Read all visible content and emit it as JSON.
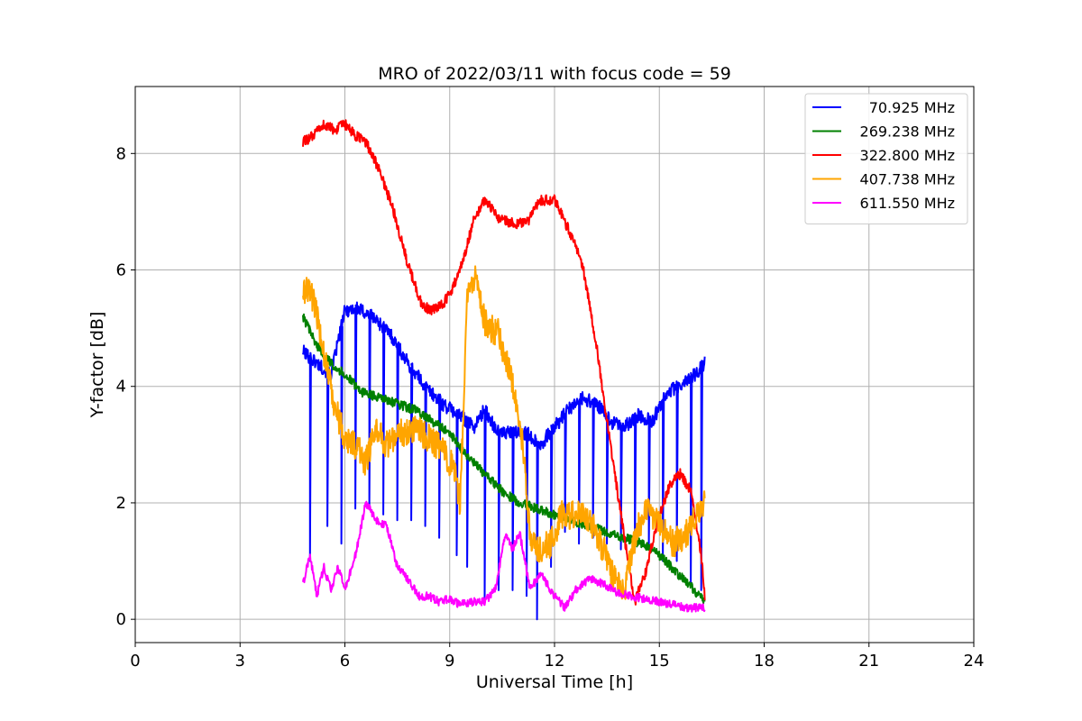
{
  "chart_data": {
    "type": "line",
    "title": "MRO of 2022/03/11 with focus code = 59",
    "xlabel": "Universal Time [h]",
    "ylabel": "Y-factor [dB]",
    "xlim": [
      0,
      24
    ],
    "ylim": [
      -0.4,
      9.15
    ],
    "xticks": [
      0,
      3,
      6,
      9,
      12,
      15,
      18,
      21,
      24
    ],
    "yticks": [
      0,
      2,
      4,
      6,
      8
    ],
    "xtick_labels": [
      "0",
      "3",
      "6",
      "9",
      "12",
      "15",
      "18",
      "21",
      "24"
    ],
    "ytick_labels": [
      "0",
      "2",
      "4",
      "6",
      "8"
    ],
    "grid": true,
    "legend_position": "top-right",
    "series": [
      {
        "name": "70.925 MHz",
        "legend_label": " 70.925 MHz",
        "color": "#0000ff",
        "noise": 0.12,
        "x": [
          4.8,
          5.2,
          5.6,
          6.0,
          6.3,
          6.8,
          7.3,
          7.8,
          8.3,
          8.8,
          9.3,
          9.7,
          10.0,
          10.4,
          10.8,
          11.2,
          11.6,
          12.0,
          12.4,
          12.8,
          13.2,
          13.6,
          14.0,
          14.4,
          14.8,
          15.2,
          15.6,
          16.0,
          16.3
        ],
        "y": [
          4.6,
          4.4,
          4.2,
          5.3,
          5.35,
          5.2,
          4.9,
          4.4,
          4.0,
          3.7,
          3.5,
          3.3,
          3.6,
          3.2,
          3.2,
          3.2,
          3.0,
          3.3,
          3.6,
          3.8,
          3.7,
          3.4,
          3.3,
          3.5,
          3.4,
          3.9,
          4.0,
          4.2,
          4.4
        ],
        "dropouts": [
          {
            "x": 5.0,
            "y": 1.0
          },
          {
            "x": 5.5,
            "y": 1.6
          },
          {
            "x": 5.9,
            "y": 1.3
          },
          {
            "x": 6.3,
            "y": 1.9
          },
          {
            "x": 6.7,
            "y": 1.9
          },
          {
            "x": 7.1,
            "y": 1.8
          },
          {
            "x": 7.5,
            "y": 1.7
          },
          {
            "x": 7.9,
            "y": 1.7
          },
          {
            "x": 8.3,
            "y": 1.6
          },
          {
            "x": 8.7,
            "y": 1.4
          },
          {
            "x": 9.2,
            "y": 1.1
          },
          {
            "x": 9.5,
            "y": 0.9
          },
          {
            "x": 10.0,
            "y": 0.3
          },
          {
            "x": 10.4,
            "y": 0.5
          },
          {
            "x": 10.8,
            "y": 0.5
          },
          {
            "x": 11.2,
            "y": 0.4
          },
          {
            "x": 11.5,
            "y": 0.0
          },
          {
            "x": 11.9,
            "y": 0.9
          },
          {
            "x": 12.3,
            "y": 1.5
          },
          {
            "x": 12.7,
            "y": 1.3
          },
          {
            "x": 13.1,
            "y": 1.4
          },
          {
            "x": 13.5,
            "y": 1.3
          },
          {
            "x": 13.9,
            "y": 1.2
          },
          {
            "x": 14.3,
            "y": 1.2
          },
          {
            "x": 14.7,
            "y": 1.2
          },
          {
            "x": 15.1,
            "y": 1.0
          },
          {
            "x": 15.5,
            "y": 1.0
          },
          {
            "x": 15.9,
            "y": 0.6
          },
          {
            "x": 16.2,
            "y": 0.5
          }
        ]
      },
      {
        "name": "269.238 MHz",
        "legend_label": "269.238 MHz",
        "color": "#008000",
        "noise": 0.08,
        "x": [
          4.8,
          5.2,
          5.6,
          6.0,
          6.5,
          7.0,
          7.5,
          8.0,
          8.5,
          9.0,
          9.5,
          10.0,
          10.5,
          11.0,
          11.5,
          12.0,
          12.5,
          13.0,
          13.5,
          14.0,
          14.5,
          15.0,
          15.5,
          16.0,
          16.3
        ],
        "y": [
          5.2,
          4.7,
          4.4,
          4.2,
          3.9,
          3.8,
          3.7,
          3.6,
          3.4,
          3.2,
          2.8,
          2.5,
          2.2,
          2.0,
          1.9,
          1.8,
          1.7,
          1.6,
          1.5,
          1.4,
          1.3,
          1.1,
          0.8,
          0.5,
          0.3
        ]
      },
      {
        "name": "322.800 MHz",
        "legend_label": "322.800 MHz",
        "color": "#ff0000",
        "noise": 0.09,
        "x": [
          4.8,
          5.1,
          5.4,
          5.7,
          6.0,
          6.3,
          6.6,
          7.0,
          7.4,
          7.8,
          8.2,
          8.5,
          8.8,
          9.1,
          9.4,
          9.7,
          10.0,
          10.4,
          10.8,
          11.2,
          11.6,
          12.0,
          12.4,
          12.8,
          13.2,
          13.5,
          13.8,
          14.1,
          14.3,
          14.6,
          15.0,
          15.3,
          15.6,
          15.9,
          16.2,
          16.3
        ],
        "y": [
          8.2,
          8.3,
          8.5,
          8.4,
          8.5,
          8.3,
          8.2,
          7.7,
          7.0,
          6.1,
          5.4,
          5.3,
          5.4,
          5.7,
          6.2,
          6.9,
          7.2,
          6.9,
          6.8,
          6.8,
          7.2,
          7.2,
          6.7,
          6.1,
          4.7,
          3.4,
          2.2,
          1.0,
          0.3,
          0.8,
          1.8,
          2.3,
          2.5,
          2.2,
          1.1,
          0.4
        ]
      },
      {
        "name": "407.738 MHz",
        "legend_label": "407.738 MHz",
        "color": "#ffa500",
        "noise": 0.25,
        "x": [
          4.8,
          5.0,
          5.2,
          5.4,
          5.7,
          6.0,
          6.3,
          6.6,
          6.9,
          7.2,
          7.6,
          8.0,
          8.4,
          8.8,
          9.1,
          9.3,
          9.5,
          9.7,
          10.0,
          10.4,
          10.8,
          11.1,
          11.3,
          11.6,
          11.9,
          12.2,
          12.6,
          13.0,
          13.4,
          13.7,
          14.0,
          14.3,
          14.6,
          15.0,
          15.4,
          15.8,
          16.1,
          16.3
        ],
        "y": [
          5.6,
          5.7,
          5.2,
          4.6,
          3.7,
          3.1,
          3.0,
          2.7,
          3.3,
          3.0,
          3.2,
          3.3,
          3.1,
          2.9,
          2.6,
          2.0,
          5.5,
          5.9,
          5.1,
          4.9,
          4.1,
          3.0,
          1.4,
          1.2,
          1.3,
          1.8,
          1.8,
          1.7,
          1.2,
          0.7,
          0.5,
          1.4,
          1.9,
          1.6,
          1.3,
          1.5,
          1.8,
          2.0
        ]
      },
      {
        "name": "611.550 MHz",
        "legend_label": "611.550 MHz",
        "color": "#ff00ff",
        "noise": 0.07,
        "x": [
          4.8,
          5.0,
          5.2,
          5.4,
          5.6,
          5.8,
          6.0,
          6.3,
          6.6,
          6.9,
          7.2,
          7.5,
          7.8,
          8.1,
          8.4,
          8.7,
          9.0,
          9.3,
          9.6,
          10.0,
          10.3,
          10.6,
          10.8,
          11.0,
          11.3,
          11.6,
          12.0,
          12.3,
          12.6,
          13.0,
          13.4,
          13.8,
          14.2,
          14.6,
          15.0,
          15.4,
          15.8,
          16.3
        ],
        "y": [
          0.6,
          1.1,
          0.4,
          0.9,
          0.5,
          0.9,
          0.5,
          1.1,
          2.0,
          1.7,
          1.6,
          0.9,
          0.7,
          0.4,
          0.4,
          0.3,
          0.35,
          0.25,
          0.3,
          0.3,
          0.5,
          1.5,
          1.2,
          1.5,
          0.5,
          0.8,
          0.4,
          0.2,
          0.5,
          0.7,
          0.6,
          0.45,
          0.4,
          0.35,
          0.3,
          0.25,
          0.2,
          0.2
        ]
      }
    ]
  }
}
